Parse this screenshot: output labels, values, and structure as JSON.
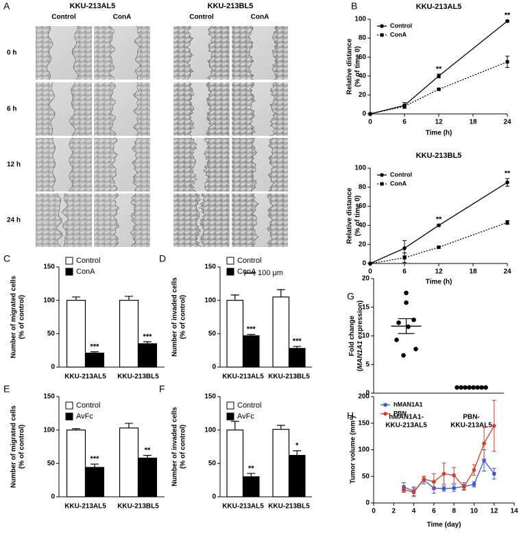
{
  "image_panel": {
    "panel": "A",
    "groups": [
      "KKU-213AL5",
      "KKU-213BL5"
    ],
    "columns": [
      "Control",
      "ConA",
      "Control",
      "ConA"
    ],
    "rows": [
      "0 h",
      "6 h",
      "12 h",
      "24 h"
    ],
    "scale_bar": "100 μm"
  },
  "chart_data": [
    {
      "type": "line",
      "panel": "B",
      "title": "KKU-213AL5",
      "xlabel": "Time (h)",
      "ylabel": [
        "Relative distance",
        "(% of time 0)"
      ],
      "x": [
        0,
        6,
        12,
        24
      ],
      "xlim": [
        0,
        24
      ],
      "xticks": [
        0,
        6,
        12,
        18,
        24
      ],
      "ylim": [
        0,
        100
      ],
      "yticks": [
        0,
        20,
        40,
        60,
        80,
        100
      ],
      "series": [
        {
          "name": "Control",
          "color": "#000000",
          "marker": "circle",
          "line_style": "solid",
          "values": [
            0,
            9,
            40,
            98
          ],
          "errors": [
            0,
            3,
            2,
            1
          ]
        },
        {
          "name": "ConA",
          "color": "#000000",
          "marker": "square",
          "line_style": "dotted",
          "values": [
            0,
            8,
            26,
            55
          ],
          "errors": [
            0,
            2,
            1,
            6
          ]
        }
      ],
      "annotations": [
        {
          "x": 12,
          "text": "**"
        },
        {
          "x": 24,
          "text": "**"
        }
      ]
    },
    {
      "type": "line",
      "title": "KKU-213BL5",
      "xlabel": "Time (h)",
      "ylabel": [
        "Relative distance",
        "(% of time 0)"
      ],
      "x": [
        0,
        6,
        12,
        24
      ],
      "xlim": [
        0,
        24
      ],
      "xticks": [
        0,
        6,
        12,
        18,
        24
      ],
      "ylim": [
        0,
        100
      ],
      "yticks": [
        0,
        20,
        40,
        60,
        80,
        100
      ],
      "series": [
        {
          "name": "Control",
          "color": "#000000",
          "marker": "circle",
          "line_style": "solid",
          "values": [
            0,
            16,
            40,
            85
          ],
          "errors": [
            0,
            8,
            1,
            4
          ]
        },
        {
          "name": "ConA",
          "color": "#000000",
          "marker": "square",
          "line_style": "dotted",
          "values": [
            0,
            6,
            17,
            43
          ],
          "errors": [
            0,
            5,
            1,
            2
          ]
        }
      ],
      "annotations": [
        {
          "x": 12,
          "text": "**"
        },
        {
          "x": 24,
          "text": "**"
        }
      ]
    },
    {
      "type": "bar",
      "panel": "C",
      "ylabel": [
        "Number of migrated cells",
        "(% of control)"
      ],
      "categories": [
        "KKU-213AL5",
        "KKU-213BL5"
      ],
      "ylim": [
        0,
        150
      ],
      "yticks": [
        0,
        50,
        100,
        150
      ],
      "series": [
        {
          "name": "Control",
          "color": "#ffffff",
          "values": [
            100,
            100
          ],
          "errors": [
            5,
            6
          ]
        },
        {
          "name": "ConA",
          "color": "#000000",
          "values": [
            21,
            35
          ],
          "errors": [
            2,
            3
          ]
        }
      ],
      "annotations": [
        "***",
        "***"
      ]
    },
    {
      "type": "bar",
      "panel": "D",
      "ylabel": [
        "Number of invaded cells",
        "(% of control)"
      ],
      "categories": [
        "KKU-213AL5",
        "KKU-213BL5"
      ],
      "ylim": [
        0,
        150
      ],
      "yticks": [
        0,
        50,
        100,
        150
      ],
      "series": [
        {
          "name": "Control",
          "color": "#ffffff",
          "values": [
            100,
            105
          ],
          "errors": [
            8,
            11
          ]
        },
        {
          "name": "ConA",
          "color": "#000000",
          "values": [
            47,
            28
          ],
          "errors": [
            2,
            3
          ]
        }
      ],
      "annotations": [
        "***",
        "***"
      ]
    },
    {
      "type": "bar",
      "panel": "E",
      "ylabel": [
        "Number of migrated cells",
        "(% of control)"
      ],
      "categories": [
        "KKU-213AL5",
        "KKU-213BL5"
      ],
      "ylim": [
        0,
        150
      ],
      "yticks": [
        0,
        50,
        100,
        150
      ],
      "series": [
        {
          "name": "Control",
          "color": "#ffffff",
          "values": [
            100,
            103
          ],
          "errors": [
            2,
            7
          ]
        },
        {
          "name": "AvFc",
          "color": "#000000",
          "values": [
            44,
            58
          ],
          "errors": [
            5,
            4
          ]
        }
      ],
      "annotations": [
        "***",
        "**"
      ]
    },
    {
      "type": "bar",
      "panel": "F",
      "ylabel": [
        "Number of invaded cells",
        "(% of control)"
      ],
      "categories": [
        "KKU-213AL5",
        "KKU-213BL5"
      ],
      "ylim": [
        0,
        150
      ],
      "yticks": [
        0,
        50,
        100,
        150
      ],
      "series": [
        {
          "name": "Control",
          "color": "#ffffff",
          "values": [
            100,
            101
          ],
          "errors": [
            13,
            6
          ]
        },
        {
          "name": "AvFc",
          "color": "#000000",
          "values": [
            30,
            62
          ],
          "errors": [
            5,
            7
          ]
        }
      ],
      "annotations": [
        "**",
        "*"
      ]
    },
    {
      "type": "dot",
      "panel": "G",
      "ylabel": [
        [
          "Fold change"
        ],
        [
          "(",
          "MAN1A1",
          " expression)"
        ]
      ],
      "categories": [
        [
          "hMAN1A1-",
          "KKU-213AL5"
        ],
        [
          "PBN-",
          "KKU-213AL5"
        ]
      ],
      "color": "#000000",
      "ylim": [
        0,
        20
      ],
      "yticks": [
        0,
        5,
        10,
        15,
        20
      ],
      "values": [
        [
          17.5,
          15.8,
          12.3,
          12.8,
          11.6,
          9.3,
          7.7,
          6.6
        ],
        [
          1,
          1,
          1,
          1,
          1,
          1,
          1,
          1
        ]
      ],
      "means": [
        11.7,
        1
      ],
      "errors": [
        1.3,
        0
      ]
    },
    {
      "type": "line",
      "panel": "H",
      "xlabel": "Time (day)",
      "ylabel": [
        "Tumor volume (mm³)"
      ],
      "x": [
        3,
        4,
        5,
        6,
        7,
        8,
        9,
        10,
        11,
        12
      ],
      "xlim": [
        0,
        14
      ],
      "xticks": [
        0,
        2,
        4,
        6,
        8,
        10,
        12,
        14
      ],
      "ylim": [
        0,
        200
      ],
      "yticks": [
        0,
        50,
        100,
        150,
        200
      ],
      "series": [
        {
          "name": "hMAN1A1",
          "color": "#3a56d4",
          "marker": "square",
          "line_style": "solid",
          "values": [
            30,
            22,
            43,
            28,
            27,
            28,
            31,
            35,
            80,
            55
          ],
          "errors": [
            8,
            8,
            7,
            10,
            5,
            6,
            7,
            5,
            20,
            10
          ]
        },
        {
          "name": "PBN",
          "color": "#d63a2a",
          "marker": "circle",
          "line_style": "solid",
          "values": [
            25,
            20,
            45,
            40,
            55,
            52,
            30,
            62,
            112,
            145
          ],
          "errors": [
            5,
            8,
            5,
            15,
            20,
            15,
            5,
            10,
            30,
            48
          ]
        }
      ]
    }
  ]
}
